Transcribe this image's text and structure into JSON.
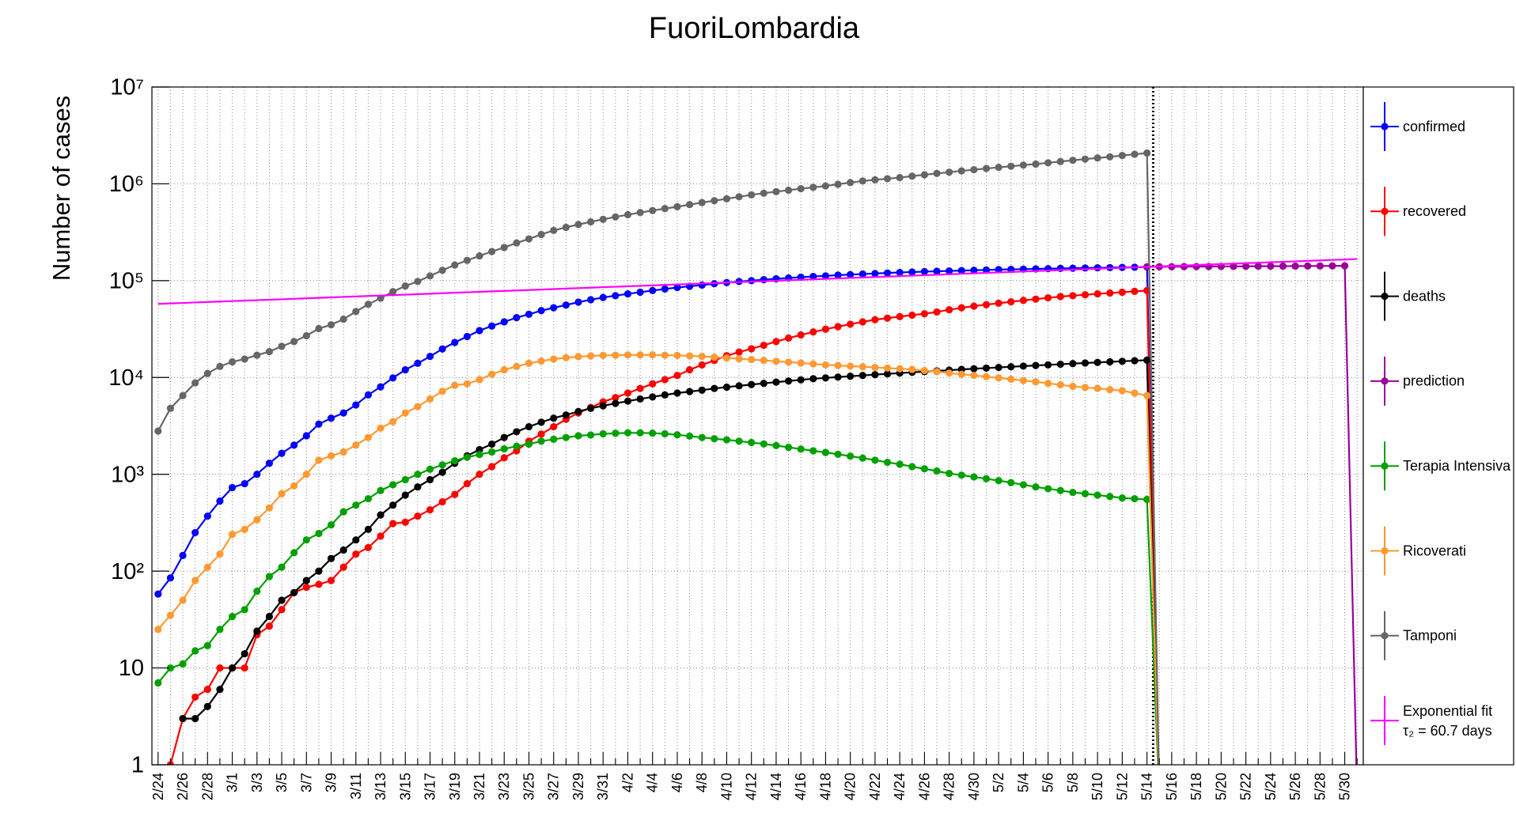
{
  "chart_data": {
    "type": "line",
    "title": "FuoriLombardia",
    "y_label": "Number of cases",
    "log_scale": true,
    "grid": true,
    "categories": [
      "2/24",
      null,
      "2/26",
      null,
      "2/28",
      null,
      "3/1",
      null,
      "3/3",
      null,
      "3/5",
      null,
      "3/7",
      null,
      "3/9",
      null,
      "3/11",
      null,
      "3/13",
      null,
      "3/15",
      null,
      "3/17",
      null,
      "3/19",
      null,
      "3/21",
      null,
      "3/23",
      null,
      "3/25",
      null,
      "3/27",
      null,
      "3/29",
      null,
      "3/31",
      null,
      "4/2",
      null,
      "4/4",
      null,
      "4/6",
      null,
      "4/8",
      null,
      "4/10",
      null,
      "4/12",
      null,
      "4/14",
      null,
      "4/16",
      null,
      "4/18",
      null,
      "4/20",
      null,
      "4/22",
      null,
      "4/24",
      null,
      "4/26",
      null,
      "4/28",
      null,
      "4/30",
      null,
      "5/2",
      null,
      "5/4",
      null,
      "5/6",
      null,
      "5/8",
      null,
      "5/10",
      null,
      "5/12",
      null,
      "5/14",
      null,
      "5/16",
      null,
      "5/18",
      null,
      "5/20",
      null,
      "5/22",
      null,
      "5/24",
      null,
      "5/26",
      null,
      "5/28",
      null,
      "5/30",
      null
    ],
    "ylim": [
      1,
      10000000
    ],
    "yticks": [
      1,
      10,
      {
        "value": 100,
        "label": "10²"
      },
      {
        "value": 1000,
        "label": "10³"
      },
      {
        "value": 10000,
        "label": "10⁴"
      },
      {
        "value": 100000,
        "label": "10⁵"
      },
      {
        "value": 1000000,
        "label": "10⁶"
      },
      {
        "value": 10000000,
        "label": "10⁷"
      }
    ],
    "fit_label": "τ₂ = 60.7 days",
    "series": [
      {
        "name": "confirmed",
        "color": "#0000ff",
        "markers": true,
        "values": [
          58,
          85,
          145,
          250,
          370,
          530,
          730,
          800,
          1000,
          1300,
          1650,
          2000,
          2500,
          3300,
          3800,
          4300,
          5200,
          6600,
          8000,
          9900,
          12000,
          14000,
          16500,
          19700,
          23000,
          26500,
          30500,
          34000,
          37500,
          41500,
          45000,
          49000,
          52500,
          56000,
          60000,
          63500,
          67000,
          70000,
          73000,
          76000,
          79000,
          82000,
          85000,
          87500,
          90000,
          93000,
          95500,
          98000,
          100000,
          102500,
          104500,
          106500,
          108500,
          110500,
          112000,
          114000,
          115500,
          117000,
          118500,
          120000,
          121500,
          122700,
          124000,
          125000,
          126000,
          127000,
          128000,
          129000,
          130000,
          130800,
          131500,
          132300,
          133000,
          133800,
          134500,
          135200,
          135800,
          136400,
          137000,
          137600,
          138200,
          0,
          null,
          null,
          null,
          null,
          null,
          null,
          null,
          null,
          null,
          null,
          null,
          null,
          null,
          null,
          null,
          null
        ]
      },
      {
        "name": "recovered",
        "color": "#ff0000",
        "markers": true,
        "values": [
          null,
          1,
          3,
          5,
          6,
          10,
          10,
          10,
          22,
          27,
          40,
          60,
          68,
          73,
          80,
          110,
          150,
          175,
          230,
          310,
          320,
          370,
          430,
          520,
          620,
          800,
          1000,
          1200,
          1480,
          1750,
          2200,
          2600,
          3100,
          3700,
          4300,
          4900,
          5600,
          6200,
          6900,
          7700,
          8600,
          9500,
          10500,
          12000,
          13500,
          15000,
          16800,
          18300,
          19800,
          21500,
          23500,
          25500,
          27500,
          29500,
          31500,
          33500,
          35500,
          37500,
          39500,
          41000,
          42500,
          44000,
          45500,
          47500,
          50000,
          52500,
          54500,
          56500,
          58500,
          60500,
          62500,
          64500,
          66500,
          68500,
          70000,
          71500,
          73000,
          74500,
          76000,
          77500,
          79000,
          0,
          null,
          null,
          null,
          null,
          null,
          null,
          null,
          null,
          null,
          null,
          null,
          null,
          null,
          null,
          null,
          null
        ]
      },
      {
        "name": "deaths",
        "color": "#000000",
        "markers": true,
        "values": [
          null,
          null,
          3,
          3,
          4,
          6,
          10,
          14,
          24,
          34,
          50,
          60,
          80,
          100,
          135,
          165,
          210,
          270,
          380,
          480,
          610,
          740,
          880,
          1050,
          1300,
          1550,
          1800,
          2050,
          2400,
          2750,
          3100,
          3450,
          3800,
          4100,
          4450,
          4800,
          5100,
          5400,
          5700,
          6000,
          6300,
          6600,
          6900,
          7150,
          7400,
          7700,
          7950,
          8200,
          8450,
          8700,
          8950,
          9200,
          9450,
          9700,
          9900,
          10100,
          10300,
          10500,
          10700,
          10900,
          11100,
          11300,
          11500,
          11700,
          11900,
          12100,
          12300,
          12500,
          12700,
          12900,
          13100,
          13300,
          13500,
          13700,
          13900,
          14100,
          14300,
          14500,
          14700,
          14900,
          15100,
          0,
          null,
          null,
          null,
          null,
          null,
          null,
          null,
          null,
          null,
          null,
          null,
          null,
          null,
          null,
          null,
          null
        ]
      },
      {
        "name": "prediction",
        "color": "#990099",
        "markers": true,
        "values": [
          null,
          null,
          null,
          null,
          null,
          null,
          null,
          null,
          null,
          null,
          null,
          null,
          null,
          null,
          null,
          null,
          null,
          null,
          null,
          null,
          null,
          null,
          null,
          null,
          null,
          null,
          null,
          null,
          null,
          null,
          null,
          null,
          null,
          null,
          null,
          null,
          null,
          null,
          null,
          null,
          null,
          null,
          null,
          null,
          null,
          null,
          null,
          null,
          null,
          null,
          null,
          null,
          null,
          null,
          null,
          null,
          null,
          null,
          null,
          null,
          null,
          null,
          null,
          null,
          null,
          null,
          null,
          null,
          null,
          null,
          null,
          null,
          null,
          null,
          null,
          null,
          null,
          null,
          null,
          null,
          139000,
          139200,
          139400,
          139600,
          139800,
          140000,
          140200,
          140400,
          140600,
          140800,
          141000,
          141200,
          141400,
          141600,
          141800,
          142000,
          142200,
          0
        ]
      },
      {
        "name": "Terapia Intensiva",
        "color": "#00a000",
        "markers": true,
        "values": [
          7,
          10,
          11,
          15,
          17,
          25,
          34,
          40,
          62,
          88,
          110,
          155,
          210,
          245,
          300,
          410,
          480,
          560,
          680,
          780,
          880,
          1000,
          1130,
          1250,
          1380,
          1500,
          1600,
          1700,
          1830,
          1950,
          2050,
          2200,
          2300,
          2400,
          2500,
          2550,
          2620,
          2650,
          2680,
          2680,
          2660,
          2620,
          2560,
          2480,
          2400,
          2330,
          2270,
          2200,
          2130,
          2060,
          1980,
          1900,
          1820,
          1750,
          1680,
          1610,
          1540,
          1470,
          1400,
          1330,
          1270,
          1200,
          1140,
          1080,
          1020,
          980,
          940,
          900,
          860,
          820,
          780,
          740,
          710,
          680,
          650,
          630,
          610,
          590,
          570,
          560,
          550,
          0,
          null,
          null,
          null,
          null,
          null,
          null,
          null,
          null,
          null,
          null,
          null,
          null,
          null,
          null,
          null,
          null
        ]
      },
      {
        "name": "Ricoverati",
        "color": "#ff9933",
        "markers": true,
        "values": [
          25,
          35,
          50,
          80,
          110,
          150,
          240,
          270,
          340,
          450,
          630,
          760,
          1000,
          1400,
          1550,
          1700,
          2000,
          2400,
          3000,
          3500,
          4300,
          5000,
          6000,
          7200,
          8300,
          8600,
          9500,
          10800,
          12000,
          13000,
          14000,
          14800,
          15500,
          16000,
          16400,
          16700,
          16900,
          17000,
          17100,
          17100,
          17100,
          17000,
          16900,
          16700,
          16500,
          16200,
          15900,
          15600,
          15300,
          15000,
          14700,
          14400,
          14100,
          13800,
          13500,
          13300,
          13100,
          12900,
          12700,
          12500,
          12300,
          12100,
          11800,
          11500,
          11100,
          10800,
          10500,
          10200,
          9900,
          9600,
          9300,
          9000,
          8700,
          8400,
          8100,
          7900,
          7700,
          7500,
          7300,
          6900,
          6500,
          0,
          null,
          null,
          null,
          null,
          null,
          null,
          null,
          null,
          null,
          null,
          null,
          null,
          null,
          null,
          null,
          null
        ]
      },
      {
        "name": "Tamponi",
        "color": "#666666",
        "markers": true,
        "values": [
          2800,
          4800,
          6500,
          8800,
          11000,
          13000,
          14500,
          15500,
          17000,
          18500,
          21000,
          23500,
          27000,
          32000,
          35000,
          40000,
          48000,
          57000,
          66000,
          77000,
          88000,
          98000,
          112000,
          128000,
          145000,
          162000,
          180000,
          200000,
          220000,
          245000,
          270000,
          300000,
          330000,
          355000,
          380000,
          405000,
          430000,
          455000,
          480000,
          505000,
          530000,
          555000,
          580000,
          610000,
          640000,
          670000,
          700000,
          735000,
          770000,
          800000,
          830000,
          860000,
          890000,
          920000,
          950000,
          990000,
          1030000,
          1070000,
          1100000,
          1130000,
          1160000,
          1200000,
          1240000,
          1280000,
          1320000,
          1360000,
          1400000,
          1440000,
          1480000,
          1520000,
          1560000,
          1600000,
          1650000,
          1700000,
          1750000,
          1800000,
          1850000,
          1900000,
          1960000,
          2020000,
          2080000,
          0,
          null,
          null,
          null,
          null,
          null,
          null,
          null,
          null,
          null,
          null,
          null,
          null,
          null,
          null,
          null,
          null
        ]
      },
      {
        "name": "Exponential fit",
        "color": "#ff00ff",
        "markers": false,
        "values": [
          57500,
          58170,
          58840,
          59510,
          60180,
          60850,
          61520,
          62190,
          62860,
          63530,
          64200,
          64945,
          65690,
          66435,
          67180,
          67925,
          68670,
          69415,
          70160,
          70905,
          71650,
          72485,
          73320,
          74155,
          74990,
          75825,
          76660,
          77495,
          78330,
          79165,
          80000,
          80930,
          81860,
          82790,
          83720,
          84650,
          85580,
          86510,
          87440,
          88370,
          89300,
          90340,
          91380,
          92420,
          93460,
          94500,
          95540,
          96580,
          97620,
          98660,
          99700,
          100860,
          102020,
          103180,
          104340,
          105500,
          106660,
          107820,
          108980,
          110140,
          111300,
          112590,
          113880,
          115170,
          116460,
          117750,
          119040,
          120330,
          121620,
          122910,
          124200,
          125640,
          127080,
          128520,
          129960,
          131400,
          132840,
          134280,
          135720,
          137160,
          138600,
          140210,
          141820,
          143430,
          145040,
          146650,
          148260,
          149870,
          151480,
          153090,
          154700,
          156470,
          158240,
          160010,
          161780,
          163550,
          165320,
          167100
        ]
      }
    ]
  }
}
